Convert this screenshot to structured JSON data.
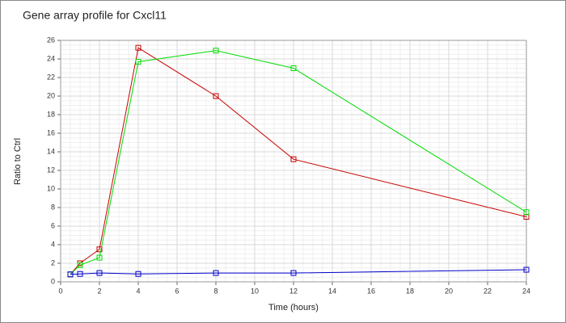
{
  "chart_data": {
    "type": "line",
    "title": "Gene array profile for Cxcl11",
    "x_label": "Time (hours)",
    "y_label": "Ratio to Ctrl",
    "x": [
      0.5,
      1,
      2,
      4,
      8,
      12,
      24
    ],
    "series": [
      {
        "color": "#cc0000",
        "values": [
          0.8,
          2.0,
          3.5,
          25.2,
          20.0,
          13.2,
          7.0
        ]
      },
      {
        "color": "#00dd00",
        "values": [
          0.8,
          1.8,
          2.6,
          23.7,
          24.9,
          23.0,
          7.5
        ]
      },
      {
        "color": "#0000cc",
        "values": [
          0.8,
          0.85,
          0.95,
          0.85,
          0.95,
          0.95,
          1.3
        ]
      }
    ],
    "xlim": [
      0,
      24
    ],
    "xticks": [
      0,
      2,
      4,
      6,
      8,
      10,
      12,
      14,
      16,
      18,
      20,
      22,
      24
    ],
    "ylim": [
      0,
      26
    ],
    "yticks": [
      0,
      2,
      4,
      6,
      8,
      10,
      12,
      14,
      16,
      18,
      20,
      22,
      24,
      26
    ],
    "grid": true,
    "minor_grid": true
  }
}
